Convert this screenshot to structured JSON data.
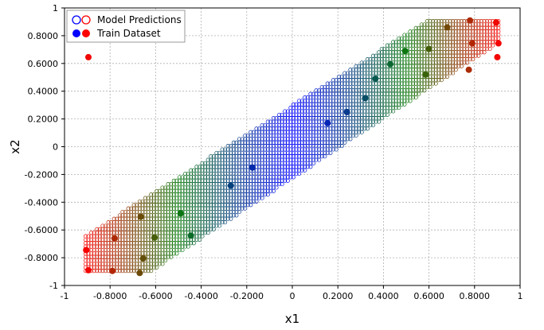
{
  "chart_data": {
    "type": "scatter",
    "xlabel": "x1",
    "ylabel": "x2",
    "xlim": [
      -1,
      1
    ],
    "ylim": [
      -1,
      1
    ],
    "grid": true,
    "legend_position": "top-left",
    "x_ticks": [
      "-1",
      "-0.8000",
      "-0.6000",
      "-0.4000",
      "-0.2000",
      "0",
      "0.2000",
      "0.4000",
      "0.6000",
      "0.8000",
      "1"
    ],
    "y_ticks": [
      "-1",
      "-0.8000",
      "-0.6000",
      "-0.4000",
      "-0.2000",
      "0",
      "0.2000",
      "0.4000",
      "0.6000",
      "0.8000",
      "1"
    ],
    "colors": {
      "low": "#0000ff",
      "mid": "#0c7a0c",
      "high": "#ff0000"
    },
    "series": [
      {
        "name": "Model Predictions",
        "marker": "hollow-circle",
        "region_polygon": [
          [
            -0.91,
            -0.9
          ],
          [
            -0.62,
            -0.9
          ],
          [
            0.91,
            0.75
          ],
          [
            0.91,
            0.92
          ],
          [
            0.6,
            0.92
          ],
          [
            -0.91,
            -0.64
          ]
        ],
        "grid_spacing": [
          0.0125,
          0.025
        ]
      },
      {
        "name": "Train Dataset",
        "marker": "filled-circle",
        "points": [
          {
            "x": -0.895,
            "y": 0.645,
            "_n": 0
          },
          {
            "x": -0.905,
            "y": -0.745
          },
          {
            "x": -0.895,
            "y": -0.89
          },
          {
            "x": -0.78,
            "y": -0.66
          },
          {
            "x": -0.79,
            "y": -0.895
          },
          {
            "x": -0.665,
            "y": -0.505
          },
          {
            "x": -0.655,
            "y": -0.805
          },
          {
            "x": -0.67,
            "y": -0.91
          },
          {
            "x": -0.605,
            "y": -0.655
          },
          {
            "x": -0.49,
            "y": -0.48
          },
          {
            "x": -0.445,
            "y": -0.64
          },
          {
            "x": -0.27,
            "y": -0.28
          },
          {
            "x": -0.175,
            "y": -0.15
          },
          {
            "x": 0.155,
            "y": 0.17
          },
          {
            "x": 0.24,
            "y": 0.25
          },
          {
            "x": 0.32,
            "y": 0.35
          },
          {
            "x": 0.365,
            "y": 0.49
          },
          {
            "x": 0.43,
            "y": 0.595
          },
          {
            "x": 0.495,
            "y": 0.69
          },
          {
            "x": 0.585,
            "y": 0.52
          },
          {
            "x": 0.6,
            "y": 0.705
          },
          {
            "x": 0.68,
            "y": 0.86
          },
          {
            "x": 0.775,
            "y": 0.555
          },
          {
            "x": 0.78,
            "y": 0.91
          },
          {
            "x": 0.79,
            "y": 0.745
          },
          {
            "x": 0.895,
            "y": 0.895
          },
          {
            "x": 0.9,
            "y": 0.645
          },
          {
            "x": 0.905,
            "y": 0.745
          }
        ]
      }
    ]
  }
}
